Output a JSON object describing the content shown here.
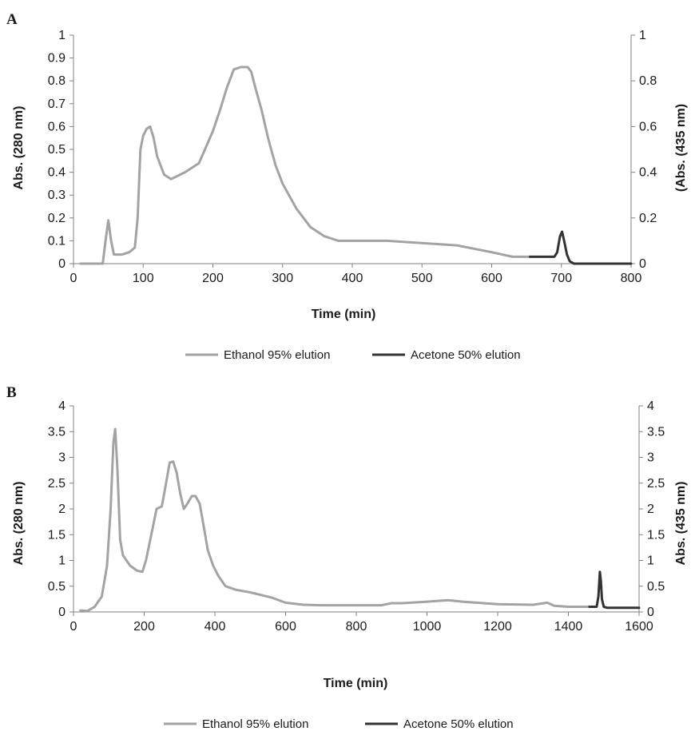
{
  "colors": {
    "ethanol": "#a3a3a3",
    "acetone": "#333333",
    "axis": "#808080"
  },
  "chart_data": [
    {
      "type": "line",
      "panel_label": "A",
      "xlabel": "Time (min)",
      "ylabel_left": "Abs. (280 nm)",
      "ylabel_right": "(Abs. (435 nm)",
      "xlim": [
        0,
        800
      ],
      "ylim_left": [
        0,
        1
      ],
      "ylim_right": [
        0,
        1
      ],
      "x_ticks": [
        "0",
        "100",
        "200",
        "300",
        "400",
        "500",
        "600",
        "700",
        "800"
      ],
      "y_ticks_left": [
        "0",
        "0.1",
        "0.2",
        "0.3",
        "0.4",
        "0.5",
        "0.6",
        "0.7",
        "0.8",
        "0.9",
        "1"
      ],
      "y_ticks_right": [
        "0",
        "0.2",
        "0.4",
        "0.6",
        "0.8",
        "1"
      ],
      "grid": false,
      "legend_position": "bottom",
      "series": [
        {
          "name": "Ethanol 95% elution",
          "axis": "left",
          "x": [
            10,
            30,
            42,
            46,
            50,
            54,
            58,
            62,
            70,
            80,
            88,
            92,
            96,
            100,
            105,
            110,
            115,
            120,
            130,
            140,
            160,
            180,
            190,
            200,
            210,
            220,
            230,
            240,
            250,
            255,
            260,
            270,
            280,
            290,
            300,
            320,
            340,
            360,
            380,
            400,
            450,
            500,
            550,
            600,
            630,
            655
          ],
          "y": [
            0,
            0,
            0,
            0.1,
            0.19,
            0.1,
            0.04,
            0.04,
            0.04,
            0.05,
            0.07,
            0.2,
            0.5,
            0.56,
            0.59,
            0.6,
            0.55,
            0.47,
            0.39,
            0.37,
            0.4,
            0.44,
            0.51,
            0.58,
            0.67,
            0.77,
            0.85,
            0.86,
            0.86,
            0.84,
            0.78,
            0.67,
            0.54,
            0.43,
            0.35,
            0.24,
            0.16,
            0.12,
            0.1,
            0.1,
            0.1,
            0.09,
            0.08,
            0.05,
            0.03,
            0.03
          ]
        },
        {
          "name": "Acetone 50% elution",
          "axis": "right",
          "x": [
            655,
            690,
            694,
            698,
            701,
            704,
            708,
            712,
            718,
            800
          ],
          "y": [
            0.03,
            0.03,
            0.05,
            0.12,
            0.14,
            0.1,
            0.04,
            0.01,
            0,
            0
          ]
        }
      ]
    },
    {
      "type": "line",
      "panel_label": "B",
      "xlabel": "Time (min)",
      "ylabel_left": "Abs. (280 nm)",
      "ylabel_right": "Abs. (435 nm)",
      "xlim": [
        0,
        1600
      ],
      "ylim_left": [
        0,
        4
      ],
      "ylim_right": [
        0,
        4
      ],
      "x_ticks": [
        "0",
        "200",
        "400",
        "600",
        "800",
        "1000",
        "1200",
        "1400",
        "1600"
      ],
      "y_ticks_left": [
        "0",
        "0.5",
        "1",
        "1.5",
        "2",
        "2.5",
        "3",
        "3.5",
        "4"
      ],
      "y_ticks_right": [
        "0",
        "0.5",
        "1",
        "1.5",
        "2",
        "2.5",
        "3",
        "3.5",
        "4"
      ],
      "grid": false,
      "legend_position": "bottom",
      "series": [
        {
          "name": "Ethanol 95% elution",
          "axis": "left",
          "x": [
            20,
            40,
            60,
            80,
            95,
            105,
            113,
            118,
            124,
            132,
            140,
            160,
            180,
            195,
            205,
            220,
            235,
            250,
            262,
            272,
            282,
            292,
            302,
            312,
            322,
            335,
            345,
            357,
            370,
            380,
            395,
            410,
            430,
            460,
            500,
            560,
            600,
            650,
            700,
            800,
            870,
            900,
            930,
            1000,
            1060,
            1100,
            1200,
            1300,
            1340,
            1360,
            1400,
            1460
          ],
          "y": [
            0.03,
            0.02,
            0.1,
            0.3,
            0.9,
            2.0,
            3.3,
            3.55,
            2.8,
            1.4,
            1.1,
            0.9,
            0.8,
            0.78,
            1.0,
            1.5,
            2.0,
            2.05,
            2.5,
            2.9,
            2.92,
            2.7,
            2.3,
            2.0,
            2.1,
            2.25,
            2.25,
            2.1,
            1.6,
            1.2,
            0.9,
            0.7,
            0.5,
            0.43,
            0.38,
            0.28,
            0.18,
            0.14,
            0.13,
            0.13,
            0.13,
            0.17,
            0.17,
            0.2,
            0.23,
            0.2,
            0.15,
            0.14,
            0.18,
            0.12,
            0.1,
            0.1
          ]
        },
        {
          "name": "Acetone 50% elution",
          "axis": "right",
          "x": [
            1460,
            1480,
            1485,
            1489,
            1492,
            1495,
            1500,
            1510,
            1600
          ],
          "y": [
            0.1,
            0.1,
            0.3,
            0.78,
            0.6,
            0.25,
            0.1,
            0.08,
            0.08
          ]
        }
      ]
    }
  ]
}
